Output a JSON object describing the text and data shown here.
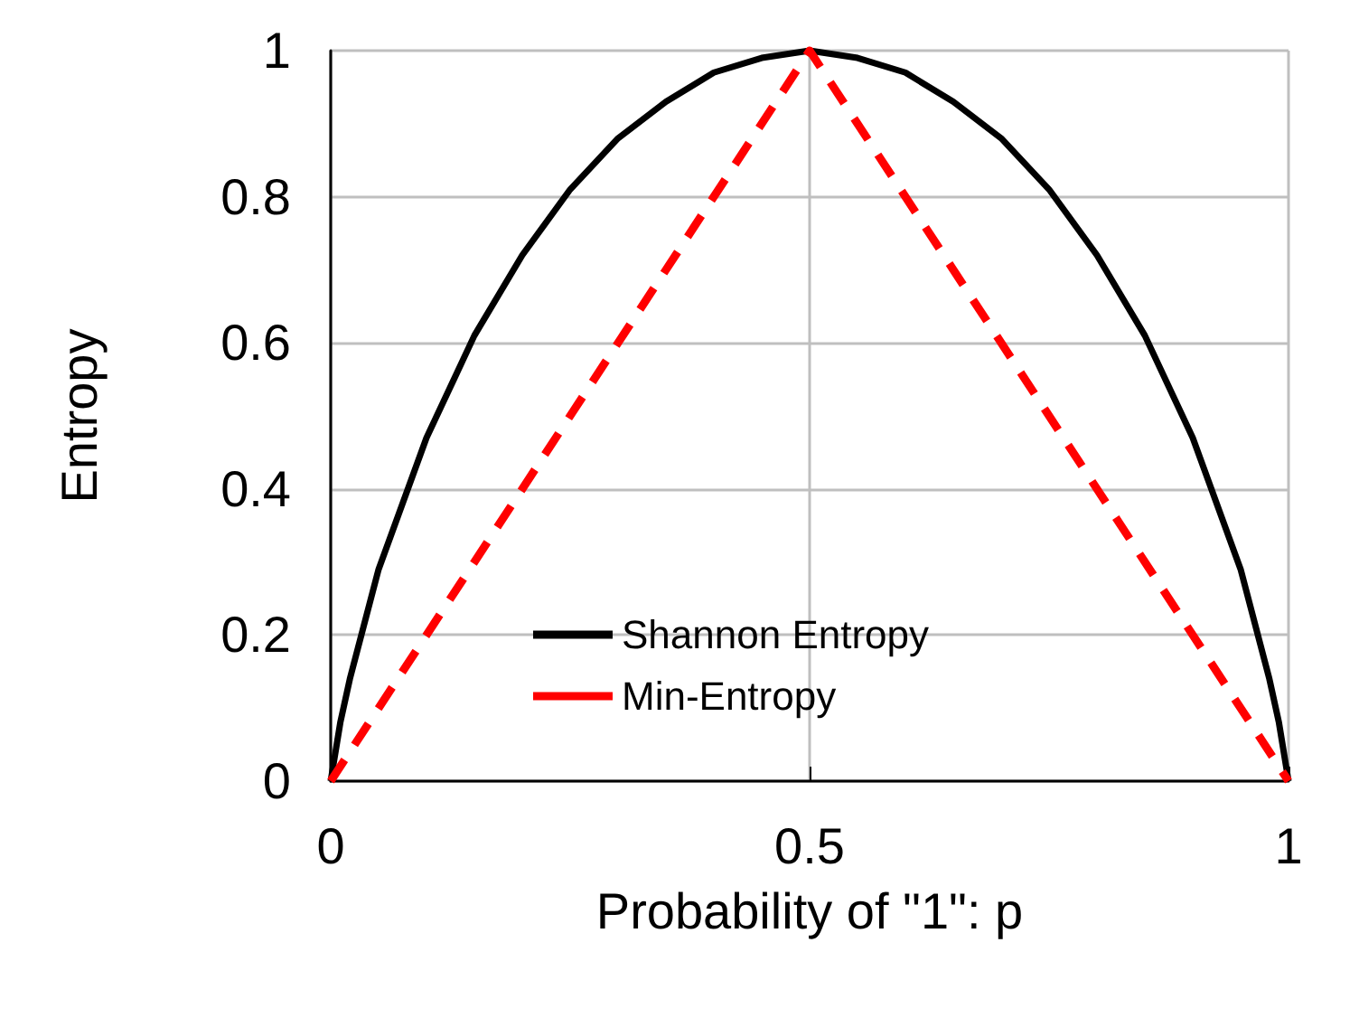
{
  "chart_data": {
    "type": "line",
    "xlabel": "Probability of \"1\": p",
    "ylabel": "Entropy",
    "xlim": [
      0,
      1
    ],
    "xticks": [
      0,
      0.5,
      1
    ],
    "ylim": [
      0,
      1
    ],
    "yticks": [
      0,
      0.2,
      0.4,
      0.6,
      0.8,
      1
    ],
    "grid": true,
    "legend": "bottom",
    "marker": "none",
    "series": [
      {
        "name": "Shannon Entropy",
        "color": "#000000",
        "line_style": "solid",
        "x": [
          0,
          0.01,
          0.02,
          0.05,
          0.1,
          0.15,
          0.2,
          0.25,
          0.3,
          0.35,
          0.4,
          0.45,
          0.5,
          0.55,
          0.6,
          0.65,
          0.7,
          0.75,
          0.8,
          0.85,
          0.9,
          0.95,
          0.98,
          0.99,
          1
        ],
        "values": [
          0,
          0.08,
          0.14,
          0.29,
          0.47,
          0.61,
          0.72,
          0.81,
          0.88,
          0.93,
          0.97,
          0.99,
          1,
          0.99,
          0.97,
          0.93,
          0.88,
          0.81,
          0.72,
          0.61,
          0.47,
          0.29,
          0.14,
          0.08,
          0
        ]
      },
      {
        "name": "Min-Entropy",
        "color": "#ff0000",
        "line_style": "dashed",
        "x": [
          0,
          0.5,
          1
        ],
        "values": [
          0,
          1,
          0
        ]
      }
    ]
  }
}
